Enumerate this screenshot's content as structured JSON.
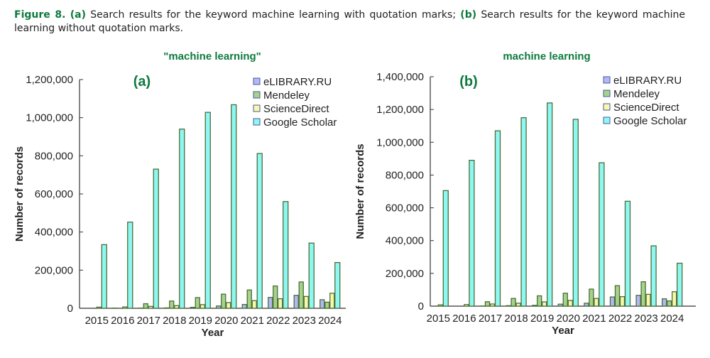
{
  "caption": {
    "fig_label": "Figure 8.",
    "a_label": "(a)",
    "a_text": " Search results for the keyword machine learning with quotation marks; ",
    "b_label": "(b)",
    "b_text": " Search results for the keyword machine learning without quotation marks."
  },
  "colors": {
    "eLIBRARY.RU": "#b3b8f5",
    "Mendeley": "#a6d28a",
    "ScienceDirect": "#f9f7a8",
    "Google Scholar": "#8ff7f2",
    "edge": "#4a6e3a"
  },
  "chart_data": [
    {
      "type": "bar",
      "panel_label": "(a)",
      "title": "\"machine learning\"",
      "xlabel": "Year",
      "ylabel": "Number of records",
      "ylim": [
        0,
        1200000
      ],
      "yticks": [
        0,
        200000,
        400000,
        600000,
        800000,
        1000000,
        1200000
      ],
      "ytick_labels": [
        "0",
        "200,000",
        "400,000",
        "600,000",
        "800,000",
        "1,000,000",
        "1,200,000"
      ],
      "categories": [
        "2015",
        "2016",
        "2017",
        "2018",
        "2019",
        "2020",
        "2021",
        "2022",
        "2023",
        "2024"
      ],
      "legend_position": "top-right",
      "series": [
        {
          "name": "eLIBRARY.RU",
          "values": [
            0,
            1000,
            1000,
            2000,
            5000,
            12000,
            20000,
            57000,
            68000,
            45000
          ]
        },
        {
          "name": "Mendeley",
          "values": [
            0,
            0,
            24000,
            38000,
            56000,
            74000,
            96000,
            117000,
            138000,
            32000
          ]
        },
        {
          "name": "ScienceDirect",
          "values": [
            6000,
            7000,
            10000,
            14000,
            19000,
            30000,
            40000,
            50000,
            62000,
            79000
          ]
        },
        {
          "name": "Google Scholar",
          "values": [
            334000,
            452000,
            730000,
            940000,
            1028000,
            1068000,
            812000,
            560000,
            342000,
            240000
          ]
        }
      ]
    },
    {
      "type": "bar",
      "panel_label": "(b)",
      "title": "machine learning",
      "xlabel": "Year",
      "ylabel": "Number of records",
      "ylim": [
        0,
        1400000
      ],
      "yticks": [
        0,
        200000,
        400000,
        600000,
        800000,
        1000000,
        1200000,
        1400000
      ],
      "ytick_labels": [
        "0",
        "200,000",
        "400,000",
        "600,000",
        "800,000",
        "1,000,000",
        "1,200,000",
        "1,400,000"
      ],
      "categories": [
        "2015",
        "2016",
        "2017",
        "2018",
        "2019",
        "2020",
        "2021",
        "2022",
        "2023",
        "2024"
      ],
      "legend_position": "top-right",
      "series": [
        {
          "name": "eLIBRARY.RU",
          "values": [
            0,
            0,
            1000,
            3000,
            5000,
            12000,
            18000,
            56000,
            66000,
            45000
          ]
        },
        {
          "name": "Mendeley",
          "values": [
            0,
            0,
            27000,
            47000,
            63000,
            79000,
            104000,
            125000,
            149000,
            32000
          ]
        },
        {
          "name": "ScienceDirect",
          "values": [
            8000,
            10000,
            13000,
            18000,
            26000,
            35000,
            47000,
            58000,
            72000,
            88000
          ]
        },
        {
          "name": "Google Scholar",
          "values": [
            705000,
            890000,
            1070000,
            1150000,
            1240000,
            1140000,
            875000,
            640000,
            368000,
            262000
          ]
        }
      ]
    }
  ]
}
